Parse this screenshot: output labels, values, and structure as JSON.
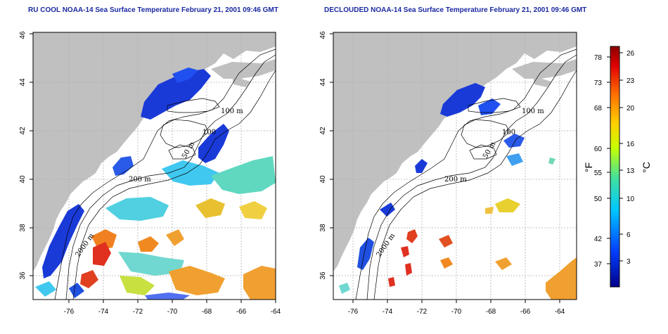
{
  "titles": {
    "left": "RU COOL NOAA-14 Sea Surface Temperature February 21, 2001 09:46 GMT",
    "right": "DECLOUDED NOAA-14 Sea Surface Temperature February 21, 2001 09:46 GMT"
  },
  "axes": {
    "lon_ticks": [
      "-76",
      "-74",
      "-72",
      "-70",
      "-68",
      "-66",
      "-64"
    ],
    "lat_ticks": [
      "36",
      "38",
      "40",
      "42",
      "44",
      "46"
    ]
  },
  "contour_labels": {
    "left": [
      "100 m",
      "100",
      "50 m",
      "200 m",
      "2000 m"
    ],
    "right": [
      "100 m",
      "100",
      "50 m",
      "200 m",
      "2000 m"
    ]
  },
  "colorbar": {
    "fahrenheit_ticks": [
      "78",
      "73",
      "68",
      "60",
      "55",
      "50",
      "42",
      "37"
    ],
    "celsius_ticks": [
      "26",
      "23",
      "20",
      "16",
      "13",
      "10",
      "6",
      "3"
    ],
    "fahrenheit_unit": "°F",
    "celsius_unit": "°C",
    "colors": [
      "#00008b",
      "#0040ff",
      "#00c8ff",
      "#40e0a0",
      "#c8ff00",
      "#ffd000",
      "#ff7000",
      "#e00000",
      "#8b0000"
    ]
  },
  "colors": {
    "land": "#c0c0c0",
    "ocean": "#ffffff",
    "title": "#1a2aa0",
    "grid": "#b0b0b0"
  }
}
